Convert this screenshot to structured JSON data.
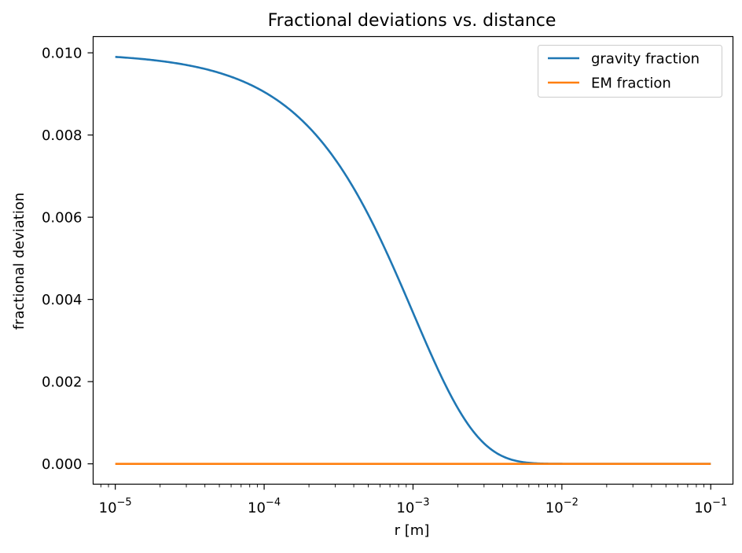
{
  "chart_data": {
    "type": "line",
    "title": "Fractional deviations vs. distance",
    "xlabel": "r [m]",
    "ylabel": "fractional deviation",
    "xscale": "log",
    "xlim": [
      7.1e-06,
      0.141
    ],
    "ylim": [
      -0.000495,
      0.010395
    ],
    "x_ticks": [
      {
        "value": 1e-05,
        "base": "10",
        "exp": "−5"
      },
      {
        "value": 0.0001,
        "base": "10",
        "exp": "−4"
      },
      {
        "value": 0.001,
        "base": "10",
        "exp": "−3"
      },
      {
        "value": 0.01,
        "base": "10",
        "exp": "−2"
      },
      {
        "value": 0.1,
        "base": "10",
        "exp": "−1"
      }
    ],
    "y_ticks": [
      {
        "value": 0.0,
        "label": "0.000"
      },
      {
        "value": 0.002,
        "label": "0.002"
      },
      {
        "value": 0.004,
        "label": "0.004"
      },
      {
        "value": 0.006,
        "label": "0.006"
      },
      {
        "value": 0.008,
        "label": "0.008"
      },
      {
        "value": 0.01,
        "label": "0.010"
      }
    ],
    "grid": false,
    "legend_position": "top-right",
    "series": [
      {
        "name": "gravity fraction",
        "color": "#1f77b4",
        "model": {
          "form": "amplitude*exp(-r/lambda)",
          "amplitude": 0.01,
          "lambda": 0.001
        },
        "x": [
          1e-05,
          3e-05,
          0.0001,
          0.0003,
          0.001,
          0.003,
          0.01,
          0.03,
          0.1
        ],
        "values": [
          0.0099,
          0.0097,
          0.00905,
          0.00741,
          0.00368,
          0.000498,
          4.5e-07,
          0.0,
          0.0
        ]
      },
      {
        "name": "EM fraction",
        "color": "#ff7f0e",
        "x": [
          1e-05,
          0.1
        ],
        "values": [
          0.0,
          0.0
        ]
      }
    ]
  }
}
